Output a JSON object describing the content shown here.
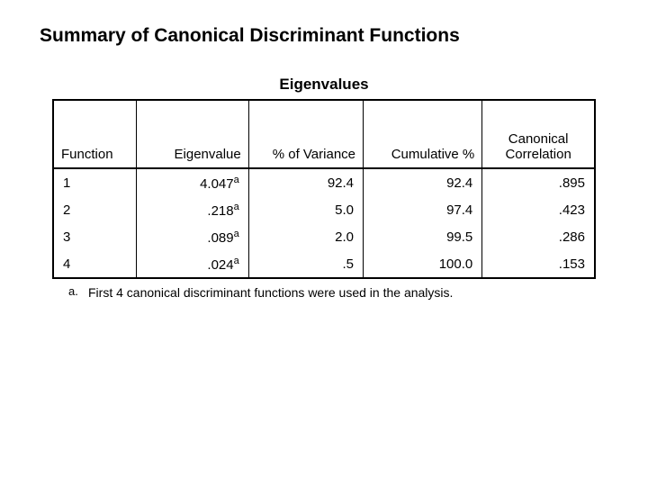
{
  "page": {
    "title": "Summary of Canonical Discriminant Functions"
  },
  "table": {
    "title": "Eigenvalues",
    "columns": {
      "fn": "Function",
      "eigen": "Eigenvalue",
      "variance": "% of Variance",
      "cumulative": "Cumulative %",
      "corr": "Canonical Correlation"
    },
    "rows": [
      {
        "fn": "1",
        "eigen": "4.047",
        "sup": "a",
        "variance": "92.4",
        "cumulative": "92.4",
        "corr": ".895"
      },
      {
        "fn": "2",
        "eigen": ".218",
        "sup": "a",
        "variance": "5.0",
        "cumulative": "97.4",
        "corr": ".423"
      },
      {
        "fn": "3",
        "eigen": ".089",
        "sup": "a",
        "variance": "2.0",
        "cumulative": "99.5",
        "corr": ".286"
      },
      {
        "fn": "4",
        "eigen": ".024",
        "sup": "a",
        "variance": ".5",
        "cumulative": "100.0",
        "corr": ".153"
      }
    ]
  },
  "footnote": {
    "mark": "a.",
    "text": "First 4 canonical discriminant functions were used in the analysis."
  }
}
